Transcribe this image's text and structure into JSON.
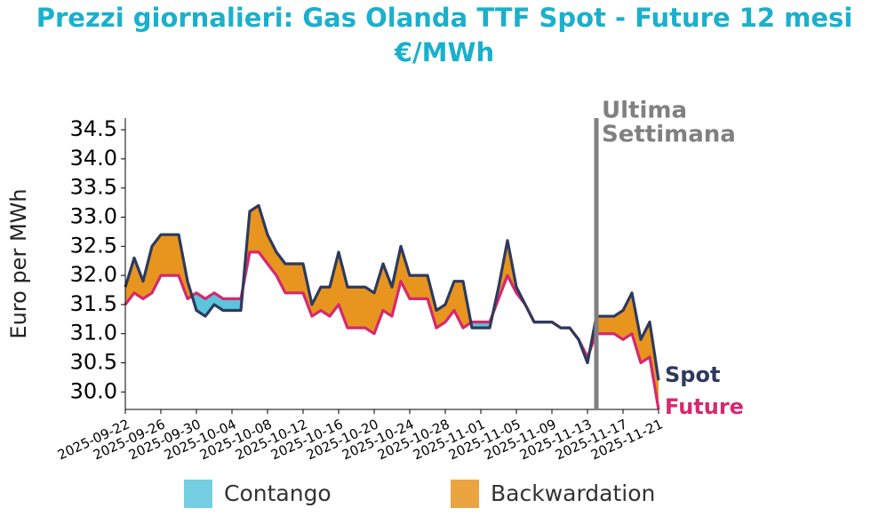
{
  "chart_data": {
    "type": "line",
    "title": "Prezzi giornalieri: Gas Olanda TTF Spot - Future 12 mesi",
    "subtitle": "€/MWh",
    "title_color": "#1ab0cc",
    "y_label": "Euro per MWh",
    "x": [
      "2025-09-22",
      "2025-09-23",
      "2025-09-24",
      "2025-09-25",
      "2025-09-26",
      "2025-09-27",
      "2025-09-28",
      "2025-09-29",
      "2025-09-30",
      "2025-10-01",
      "2025-10-02",
      "2025-10-03",
      "2025-10-04",
      "2025-10-05",
      "2025-10-06",
      "2025-10-07",
      "2025-10-08",
      "2025-10-09",
      "2025-10-10",
      "2025-10-11",
      "2025-10-12",
      "2025-10-13",
      "2025-10-14",
      "2025-10-15",
      "2025-10-16",
      "2025-10-17",
      "2025-10-18",
      "2025-10-19",
      "2025-10-20",
      "2025-10-21",
      "2025-10-22",
      "2025-10-23",
      "2025-10-24",
      "2025-10-25",
      "2025-10-26",
      "2025-10-27",
      "2025-10-28",
      "2025-10-29",
      "2025-10-30",
      "2025-10-31",
      "2025-11-01",
      "2025-11-02",
      "2025-11-03",
      "2025-11-04",
      "2025-11-05",
      "2025-11-06",
      "2025-11-07",
      "2025-11-08",
      "2025-11-09",
      "2025-11-10",
      "2025-11-11",
      "2025-11-12",
      "2025-11-13",
      "2025-11-14",
      "2025-11-15",
      "2025-11-16",
      "2025-11-17",
      "2025-11-18",
      "2025-11-19",
      "2025-11-20",
      "2025-11-21"
    ],
    "series": [
      {
        "name": "Spot",
        "color": "#2d3a5e",
        "values": [
          31.8,
          32.3,
          31.9,
          32.5,
          32.7,
          32.7,
          32.7,
          31.9,
          31.4,
          31.3,
          31.5,
          31.4,
          31.4,
          31.4,
          33.1,
          33.2,
          32.7,
          32.4,
          32.2,
          32.2,
          32.2,
          31.5,
          31.8,
          31.8,
          32.4,
          31.8,
          31.8,
          31.8,
          31.7,
          32.2,
          31.8,
          32.5,
          32.0,
          32.0,
          32.0,
          31.4,
          31.5,
          31.9,
          31.9,
          31.1,
          31.1,
          31.1,
          31.8,
          32.6,
          31.8,
          31.5,
          31.2,
          31.2,
          31.2,
          31.1,
          31.1,
          30.9,
          30.5,
          31.3,
          31.3,
          31.3,
          31.4,
          31.7,
          30.9,
          31.2,
          30.2
        ]
      },
      {
        "name": "Future",
        "color": "#d6286f",
        "values": [
          31.5,
          31.7,
          31.6,
          31.7,
          32.0,
          32.0,
          32.0,
          31.6,
          31.7,
          31.6,
          31.7,
          31.6,
          31.6,
          31.6,
          32.4,
          32.4,
          32.2,
          32.0,
          31.7,
          31.7,
          31.7,
          31.3,
          31.4,
          31.3,
          31.5,
          31.1,
          31.1,
          31.1,
          31.0,
          31.4,
          31.3,
          31.9,
          31.6,
          31.6,
          31.6,
          31.1,
          31.2,
          31.4,
          31.1,
          31.2,
          31.2,
          31.2,
          31.6,
          32.0,
          31.7,
          31.5,
          31.2,
          31.2,
          31.2,
          31.1,
          31.1,
          30.9,
          30.6,
          31.0,
          31.0,
          31.0,
          30.9,
          31.0,
          30.5,
          30.6,
          29.7
        ]
      }
    ],
    "fill_legend": [
      {
        "name": "Contango",
        "color": "#5bc5dc"
      },
      {
        "name": "Backwardation",
        "color": "#e8951f"
      }
    ],
    "xlim": [
      "2025-09-22",
      "2025-11-21"
    ],
    "xticks": [
      "2025-09-22",
      "2025-09-26",
      "2025-09-30",
      "2025-10-04",
      "2025-10-08",
      "2025-10-12",
      "2025-10-16",
      "2025-10-20",
      "2025-10-24",
      "2025-10-28",
      "2025-11-01",
      "2025-11-05",
      "2025-11-09",
      "2025-11-13",
      "2025-11-17",
      "2025-11-21"
    ],
    "ylim": [
      29.7,
      34.7
    ],
    "yticks": [
      {
        "value": 30,
        "label": "30.0"
      },
      30.5,
      {
        "value": 31,
        "label": "31.0"
      },
      31.5,
      {
        "value": 32,
        "label": "32.0"
      },
      32.5,
      {
        "value": 33,
        "label": "33.0"
      },
      33.5,
      {
        "value": 34,
        "label": "34.0"
      },
      34.5
    ],
    "vline": {
      "x": "2025-11-14",
      "color": "#808080",
      "lines": [
        "Ultima",
        "Settimana"
      ]
    }
  }
}
